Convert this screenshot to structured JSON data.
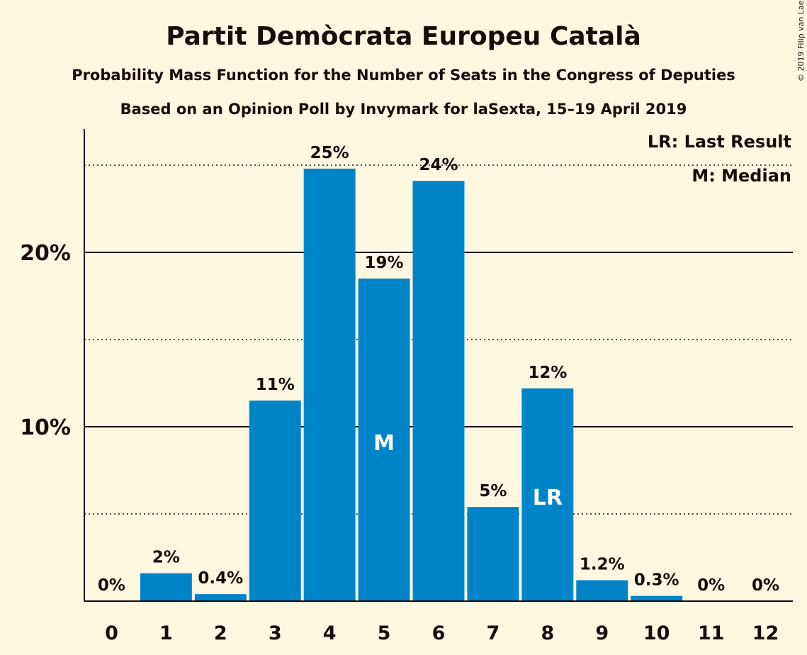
{
  "title": "Partit Demòcrata Europeu Català",
  "subtitle": "Probability Mass Function for the Number of Seats in the Congress of Deputies",
  "subtitle2": "Based on an Opinion Poll by Invymark for laSexta, 15–19 April 2019",
  "copyright": "© 2019 Filip van Laenen",
  "legend": {
    "last_result": "LR: Last Result",
    "median": "M: Median"
  },
  "colors": {
    "bar": "#0084C9",
    "background": "#FFF8E1",
    "text": "#1a0a08"
  },
  "chart_data": {
    "type": "bar",
    "categories": [
      "0",
      "1",
      "2",
      "3",
      "4",
      "5",
      "6",
      "7",
      "8",
      "9",
      "10",
      "11",
      "12"
    ],
    "values": [
      0,
      1.6,
      0.4,
      11.5,
      24.8,
      18.5,
      24.1,
      5.4,
      12.2,
      1.2,
      0.3,
      0,
      0
    ],
    "labels": [
      "0%",
      "2%",
      "0.4%",
      "11%",
      "25%",
      "19%",
      "24%",
      "5%",
      "12%",
      "1.2%",
      "0.3%",
      "0%",
      "0%"
    ],
    "ylim": [
      0,
      27
    ],
    "yticks": [
      {
        "value": 10,
        "label": "10%"
      },
      {
        "value": 20,
        "label": "20%"
      }
    ],
    "minor_gridlines": [
      5,
      15,
      25
    ],
    "median_index": 5,
    "median_label": "M",
    "last_result_index": 8,
    "last_result_label": "LR",
    "legend_position": "top-right"
  }
}
